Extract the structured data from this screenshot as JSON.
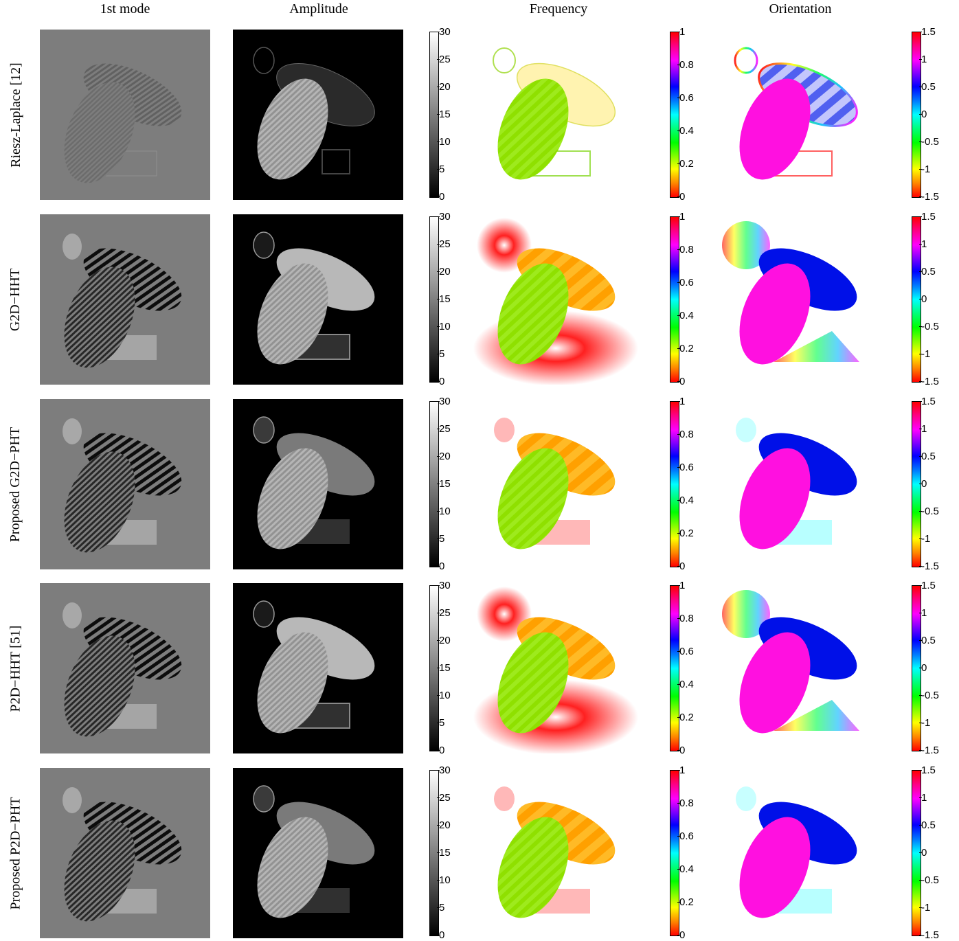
{
  "columns": [
    "1st mode",
    "Amplitude",
    "Frequency",
    "Orientation"
  ],
  "rows": [
    {
      "label": "Riesz-Laplace [12]",
      "method": "riesz"
    },
    {
      "label": "G2D−HHT",
      "method": "g2dhht"
    },
    {
      "label": "Proposed G2D−PHT",
      "method": "g2dpht"
    },
    {
      "label": "P2D−HHT [51]",
      "method": "p2dhht"
    },
    {
      "label": "Proposed P2D−PHT",
      "method": "p2dpht"
    }
  ],
  "colorbars": {
    "amplitude": {
      "ticks": [
        "30",
        "25",
        "20",
        "15",
        "10",
        "5",
        "0"
      ],
      "colormap": "gray"
    },
    "frequency": {
      "ticks": [
        "1",
        "0.8",
        "0.6",
        "0.4",
        "0.2",
        "0"
      ],
      "colormap": "hsv"
    },
    "orientation": {
      "ticks": [
        "1.5",
        "1",
        "0.5",
        "0",
        "-0.5",
        "-1",
        "-1.5"
      ],
      "colormap": "hsv"
    }
  },
  "colors": {
    "mode_bg": "#7d7d7d",
    "amp_bg": "#000000",
    "freq_orange": "#ffa000",
    "freq_green": "#8fe000",
    "freq_red": "#ff2020",
    "orient_blue": "#0010e8",
    "orient_magenta": "#ff10e0"
  }
}
